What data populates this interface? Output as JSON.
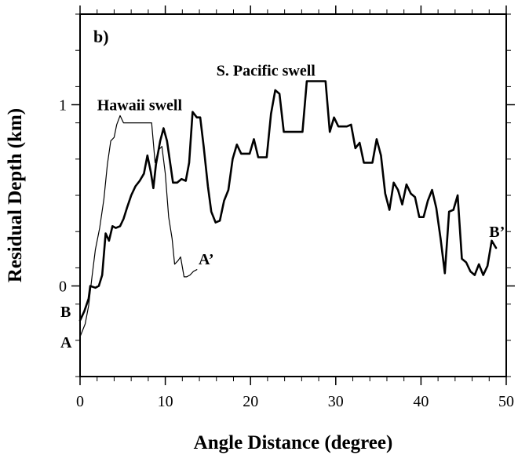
{
  "chart_data": {
    "type": "line",
    "panel_label": "b)",
    "xlabel": "Angle Distance (degree)",
    "ylabel": "Residual Depth (km)",
    "xlim": [
      0,
      50
    ],
    "ylim": [
      -0.5,
      1.5
    ],
    "x_ticks": [
      0,
      10,
      20,
      30,
      40,
      50
    ],
    "y_ticks": [
      0,
      1
    ],
    "x_minor_step": 2,
    "y_minor_step": 0.2,
    "grid": false,
    "series": [
      {
        "name": "",
        "line_style": "thick",
        "color": "#000000",
        "points": [
          [
            0.0,
            -0.19
          ],
          [
            0.5,
            -0.14
          ],
          [
            1.0,
            -0.07
          ],
          [
            1.2,
            0.0
          ],
          [
            1.8,
            -0.01
          ],
          [
            2.2,
            0.0
          ],
          [
            2.6,
            0.06
          ],
          [
            3.0,
            0.29
          ],
          [
            3.4,
            0.25
          ],
          [
            3.8,
            0.33
          ],
          [
            4.2,
            0.32
          ],
          [
            4.7,
            0.33
          ],
          [
            5.1,
            0.37
          ],
          [
            5.5,
            0.43
          ],
          [
            6.0,
            0.5
          ],
          [
            6.5,
            0.55
          ],
          [
            7.0,
            0.58
          ],
          [
            7.5,
            0.62
          ],
          [
            7.9,
            0.72
          ],
          [
            8.3,
            0.63
          ],
          [
            8.6,
            0.54
          ],
          [
            8.9,
            0.67
          ],
          [
            9.4,
            0.8
          ],
          [
            9.8,
            0.87
          ],
          [
            10.2,
            0.8
          ],
          [
            10.6,
            0.67
          ],
          [
            10.9,
            0.57
          ],
          [
            11.4,
            0.57
          ],
          [
            11.9,
            0.59
          ],
          [
            12.4,
            0.58
          ],
          [
            12.8,
            0.68
          ],
          [
            13.2,
            0.96
          ],
          [
            13.7,
            0.93
          ],
          [
            14.1,
            0.93
          ],
          [
            14.5,
            0.77
          ],
          [
            15.0,
            0.55
          ],
          [
            15.4,
            0.41
          ],
          [
            15.9,
            0.35
          ],
          [
            16.4,
            0.36
          ],
          [
            16.9,
            0.47
          ],
          [
            17.4,
            0.53
          ],
          [
            17.9,
            0.7
          ],
          [
            18.4,
            0.78
          ],
          [
            18.9,
            0.73
          ],
          [
            19.4,
            0.73
          ],
          [
            19.9,
            0.73
          ],
          [
            20.4,
            0.81
          ],
          [
            20.9,
            0.71
          ],
          [
            21.4,
            0.71
          ],
          [
            21.9,
            0.71
          ],
          [
            22.4,
            0.95
          ],
          [
            22.9,
            1.08
          ],
          [
            23.4,
            1.06
          ],
          [
            23.9,
            0.85
          ],
          [
            24.4,
            0.85
          ],
          [
            24.9,
            0.85
          ],
          [
            25.6,
            0.85
          ],
          [
            26.1,
            0.85
          ],
          [
            26.6,
            1.13
          ],
          [
            27.1,
            1.13
          ],
          [
            27.6,
            1.13
          ],
          [
            28.4,
            1.13
          ],
          [
            28.8,
            1.13
          ],
          [
            29.3,
            0.85
          ],
          [
            29.8,
            0.93
          ],
          [
            30.3,
            0.88
          ],
          [
            30.8,
            0.88
          ],
          [
            31.3,
            0.88
          ],
          [
            31.8,
            0.89
          ],
          [
            32.3,
            0.76
          ],
          [
            32.8,
            0.79
          ],
          [
            33.3,
            0.68
          ],
          [
            33.8,
            0.68
          ],
          [
            34.3,
            0.68
          ],
          [
            34.8,
            0.81
          ],
          [
            35.3,
            0.72
          ],
          [
            35.8,
            0.51
          ],
          [
            36.3,
            0.42
          ],
          [
            36.8,
            0.57
          ],
          [
            37.3,
            0.53
          ],
          [
            37.8,
            0.45
          ],
          [
            38.3,
            0.56
          ],
          [
            38.8,
            0.51
          ],
          [
            39.3,
            0.49
          ],
          [
            39.8,
            0.38
          ],
          [
            40.3,
            0.38
          ],
          [
            40.8,
            0.47
          ],
          [
            41.3,
            0.53
          ],
          [
            41.8,
            0.43
          ],
          [
            42.3,
            0.26
          ],
          [
            42.8,
            0.07
          ],
          [
            43.3,
            0.41
          ],
          [
            43.8,
            0.42
          ],
          [
            44.3,
            0.5
          ],
          [
            44.8,
            0.15
          ],
          [
            45.3,
            0.13
          ],
          [
            45.8,
            0.08
          ],
          [
            46.3,
            0.06
          ],
          [
            46.8,
            0.12
          ],
          [
            47.3,
            0.06
          ],
          [
            47.8,
            0.11
          ],
          [
            48.3,
            0.25
          ],
          [
            48.8,
            0.21
          ]
        ]
      },
      {
        "name": "",
        "line_style": "thin",
        "color": "#000000",
        "points": [
          [
            0.0,
            -0.28
          ],
          [
            0.6,
            -0.21
          ],
          [
            1.0,
            -0.11
          ],
          [
            1.4,
            0.05
          ],
          [
            1.8,
            0.2
          ],
          [
            2.3,
            0.32
          ],
          [
            2.8,
            0.48
          ],
          [
            3.2,
            0.67
          ],
          [
            3.6,
            0.8
          ],
          [
            4.0,
            0.82
          ],
          [
            4.3,
            0.89
          ],
          [
            4.7,
            0.94
          ],
          [
            5.1,
            0.9
          ],
          [
            5.6,
            0.9
          ],
          [
            6.0,
            0.9
          ],
          [
            6.5,
            0.9
          ],
          [
            7.0,
            0.9
          ],
          [
            7.5,
            0.9
          ],
          [
            8.0,
            0.9
          ],
          [
            8.4,
            0.9
          ],
          [
            8.8,
            0.68
          ],
          [
            9.2,
            0.75
          ],
          [
            9.6,
            0.77
          ],
          [
            10.0,
            0.62
          ],
          [
            10.4,
            0.38
          ],
          [
            10.8,
            0.26
          ],
          [
            11.1,
            0.12
          ],
          [
            11.5,
            0.14
          ],
          [
            11.8,
            0.16
          ],
          [
            12.2,
            0.05
          ],
          [
            12.5,
            0.05
          ],
          [
            12.9,
            0.06
          ],
          [
            13.3,
            0.08
          ],
          [
            13.7,
            0.09
          ]
        ]
      }
    ],
    "annotations": [
      {
        "text": "Hawaii swell",
        "x": 2.0,
        "y": 0.97
      },
      {
        "text": "S. Pacific swell",
        "x": 16.0,
        "y": 1.16
      },
      {
        "text": "A’",
        "x": 13.9,
        "y": 0.12
      },
      {
        "text": "B’",
        "x": 48.0,
        "y": 0.27
      },
      {
        "text": "B",
        "x": -2.3,
        "y": -0.17
      },
      {
        "text": "A",
        "x": -2.3,
        "y": -0.34
      }
    ]
  }
}
